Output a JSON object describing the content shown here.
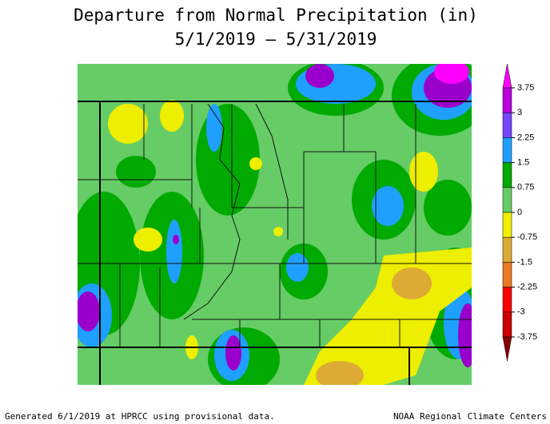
{
  "title": {
    "line1": "Departure from Normal Precipitation (in)",
    "line2": "5/1/2019 – 5/31/2019"
  },
  "legend": {
    "labels": [
      "3.75",
      "3",
      "2.25",
      "1.5",
      "0.75",
      "0",
      "-0.75",
      "-1.5",
      "-2.25",
      "-3",
      "-3.75"
    ]
  },
  "footer": {
    "left": "Generated 6/1/2019 at HPRCC using provisional data.",
    "right": "NOAA Regional Climate Centers"
  }
}
